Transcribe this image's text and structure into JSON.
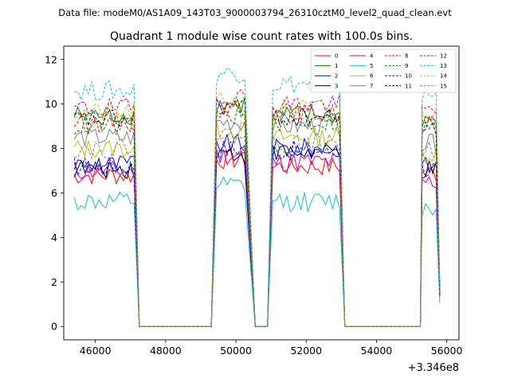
{
  "header": {
    "suptitle": "Data file: modeM0/AS1A09_143T03_9000003794_26310cztM0_level2_quad_clean.evt"
  },
  "chart_data": {
    "type": "line",
    "title": "Quadrant 1 module wise count rates with 100.0s bins.",
    "xlabel": "",
    "ylabel": "",
    "x_offset_label": "+3.346e8",
    "xlim": [
      45100,
      56350
    ],
    "ylim": [
      -0.6,
      12.6
    ],
    "x_ticks": [
      46000,
      48000,
      50000,
      52000,
      54000,
      56000
    ],
    "x_tick_labels": [
      "46000",
      "48000",
      "50000",
      "52000",
      "54000",
      "56000"
    ],
    "y_ticks": [
      0,
      2,
      4,
      6,
      8,
      10,
      12
    ],
    "y_tick_labels": [
      "0",
      "2",
      "4",
      "6",
      "8",
      "10",
      "12"
    ],
    "grid": false,
    "legend_placement": "top-right",
    "segments": [
      {
        "start": 45400,
        "end": 47100,
        "ramp_end": 47250
      },
      {
        "start": 49450,
        "end": 50300,
        "ramp_end": 50550
      },
      {
        "start": 51050,
        "end": 52950,
        "ramp_end": 53100
      },
      {
        "start": 55300,
        "end": 55750,
        "ramp_end": 55800
      }
    ],
    "gaps": [
      {
        "from": 47250,
        "to": 49300
      },
      {
        "from": 50550,
        "to": 50900
      },
      {
        "from": 53100,
        "to": 55250
      }
    ],
    "series": [
      {
        "name": "0",
        "color": "#ff0000",
        "dash": "solid",
        "levels": [
          6.8,
          7.5,
          7.2,
          6.9
        ]
      },
      {
        "name": "1",
        "color": "#008000",
        "dash": "solid",
        "levels": [
          9.5,
          10.0,
          9.5,
          9.3
        ]
      },
      {
        "name": "2",
        "color": "#0000ff",
        "dash": "solid",
        "levels": [
          7.3,
          8.2,
          8.0,
          7.2
        ]
      },
      {
        "name": "3",
        "color": "#000000",
        "dash": "solid",
        "levels": [
          7.1,
          7.8,
          7.8,
          7.0
        ]
      },
      {
        "name": "4",
        "color": "#bf00bf",
        "dash": "solid",
        "levels": [
          7.0,
          7.7,
          7.4,
          6.5
        ]
      },
      {
        "name": "5",
        "color": "#17becf",
        "dash": "solid",
        "levels": [
          5.6,
          6.3,
          5.6,
          5.3
        ]
      },
      {
        "name": "6",
        "color": "#bfbf00",
        "dash": "solid",
        "levels": [
          8.0,
          8.8,
          8.5,
          7.8
        ]
      },
      {
        "name": "7",
        "color": "#7f7f7f",
        "dash": "solid",
        "levels": [
          8.5,
          9.2,
          9.0,
          8.2
        ]
      },
      {
        "name": "8",
        "color": "#ff0000",
        "dash": "dashed",
        "levels": [
          9.2,
          9.8,
          9.6,
          9.1
        ]
      },
      {
        "name": "9",
        "color": "#008000",
        "dash": "dashed",
        "levels": [
          9.0,
          9.5,
          9.2,
          8.9
        ]
      },
      {
        "name": "10",
        "color": "#0000ff",
        "dash": "dashed",
        "levels": [
          7.2,
          8.0,
          7.9,
          7.1
        ]
      },
      {
        "name": "11",
        "color": "#000000",
        "dash": "dashed",
        "levels": [
          9.3,
          9.9,
          9.4,
          9.0
        ]
      },
      {
        "name": "12",
        "color": "#bf00bf",
        "dash": "dashed",
        "levels": [
          9.8,
          10.3,
          10.0,
          9.7
        ]
      },
      {
        "name": "13",
        "color": "#17becf",
        "dash": "dashed",
        "levels": [
          10.6,
          11.4,
          10.9,
          10.4
        ]
      },
      {
        "name": "14",
        "color": "#bfbf00",
        "dash": "dashed",
        "levels": [
          9.6,
          10.1,
          9.8,
          9.5
        ]
      },
      {
        "name": "15",
        "color": "#7f7f7f",
        "dash": "dashed",
        "levels": [
          8.0,
          8.6,
          8.2,
          7.9
        ]
      }
    ]
  }
}
